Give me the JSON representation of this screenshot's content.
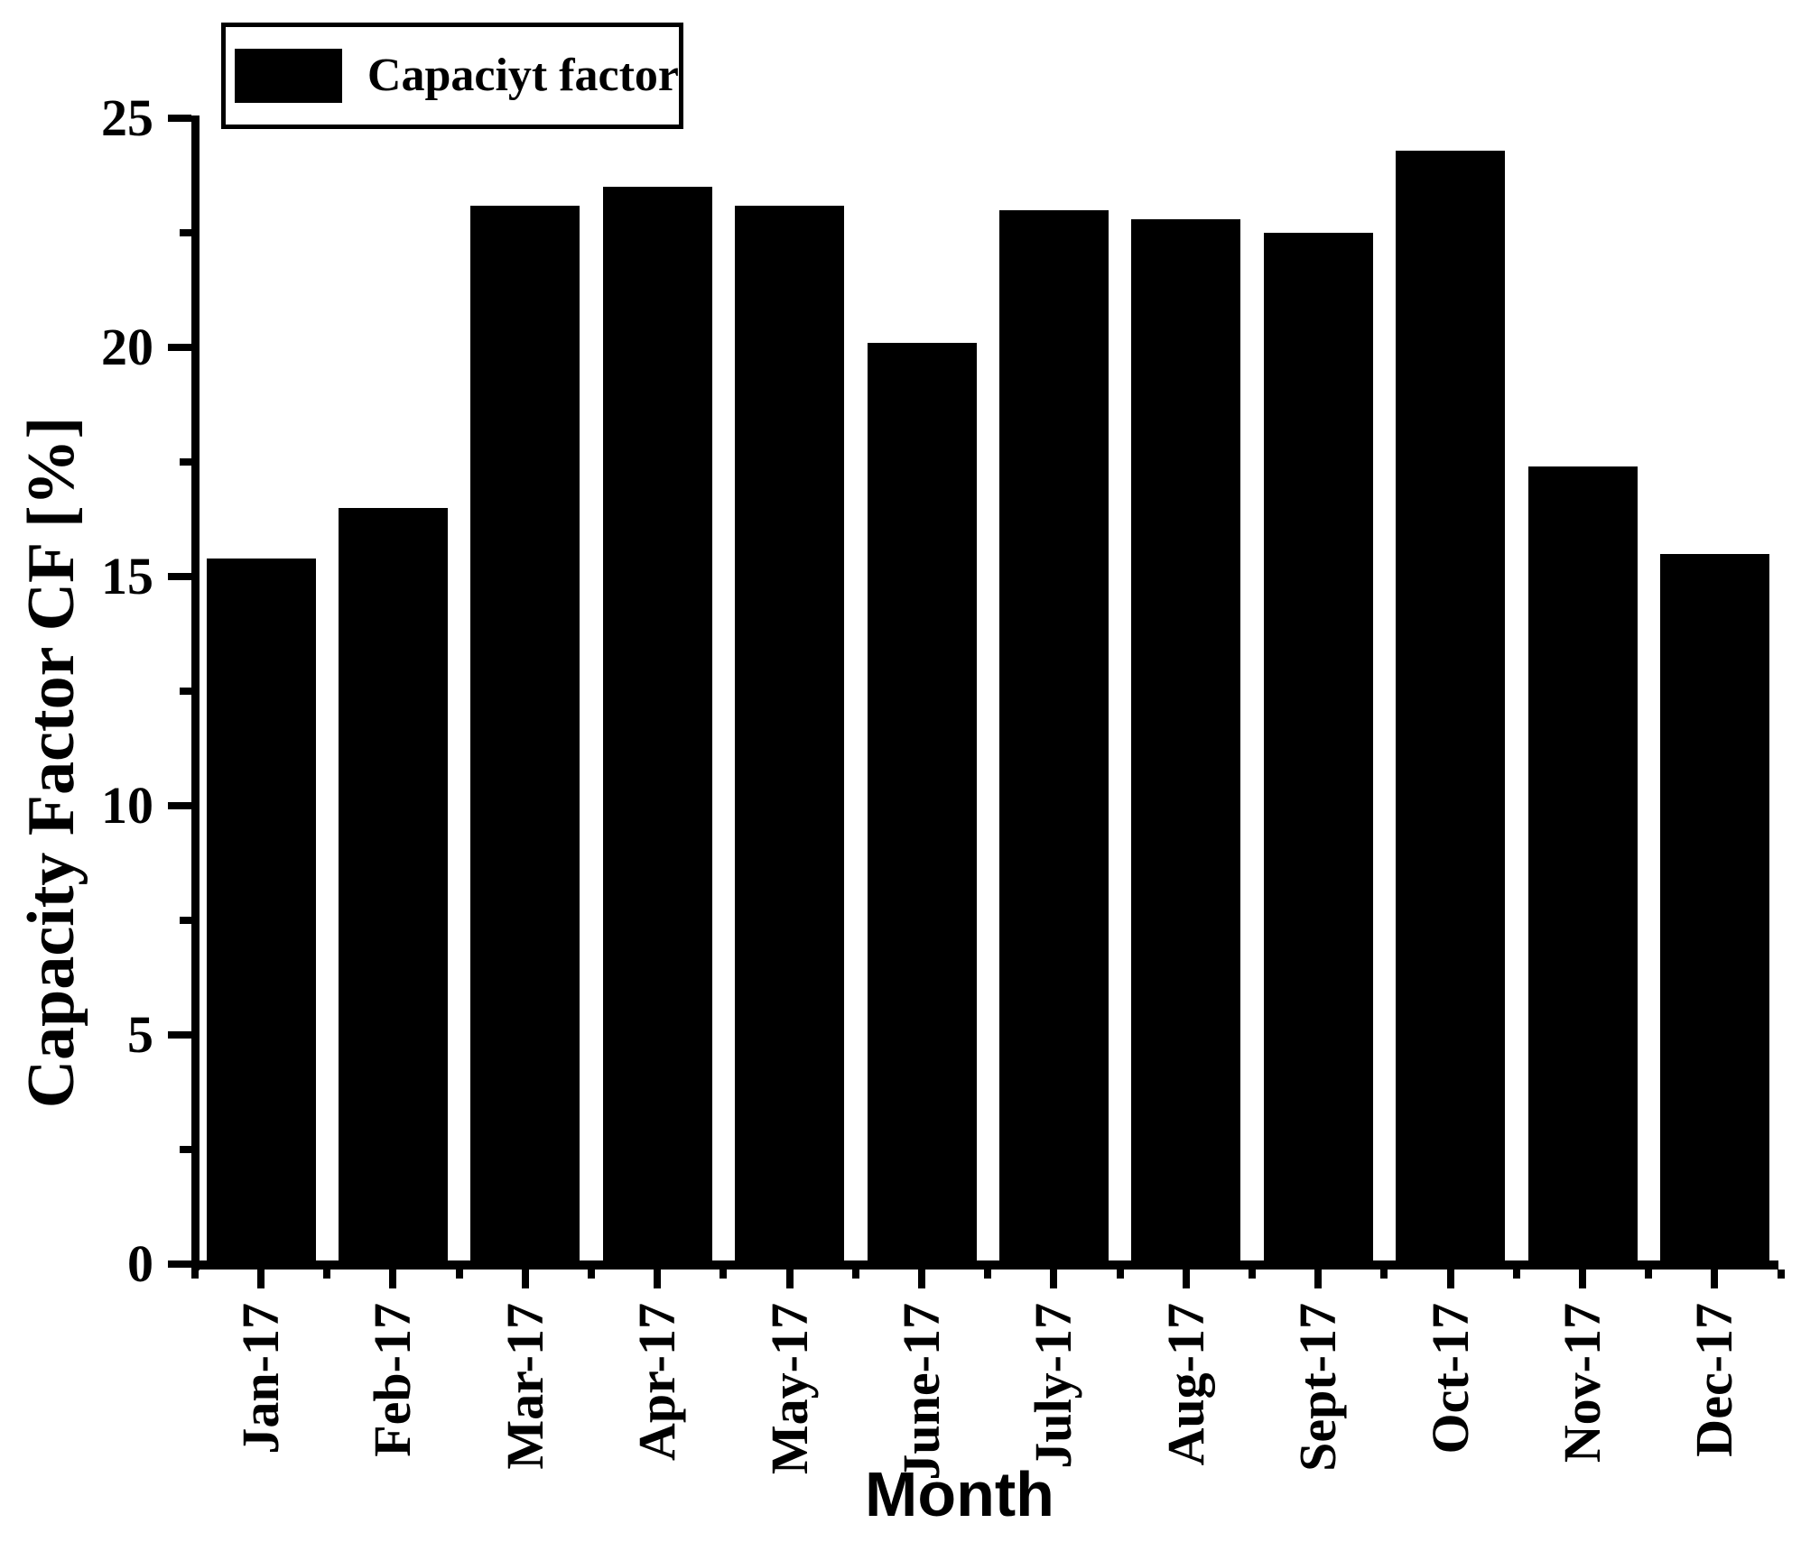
{
  "legend": {
    "label": "Capaciyt factor",
    "swatch_color": "#000000"
  },
  "chart_data": {
    "type": "bar",
    "title": "",
    "series_name": "Capaciyt factor",
    "categories": [
      "Jan-17",
      "Feb-17",
      "Mar-17",
      "Apr-17",
      "May-17",
      "June-17",
      "July-17",
      "Aug-17",
      "Sept-17",
      "Oct-17",
      "Nov-17",
      "Dec-17"
    ],
    "values": [
      15.4,
      16.5,
      23.1,
      23.5,
      23.1,
      20.1,
      23.0,
      22.8,
      22.5,
      24.3,
      17.4,
      15.5
    ],
    "xlabel": "Month",
    "ylabel": "Capacity Factor CF [%]",
    "ylim": [
      0,
      25
    ],
    "yticks": [
      0,
      5,
      10,
      15,
      20,
      25
    ],
    "ytick_minor_step": 2.5,
    "bar_color": "#000000",
    "grid": false,
    "legend_position": "top-left"
  }
}
